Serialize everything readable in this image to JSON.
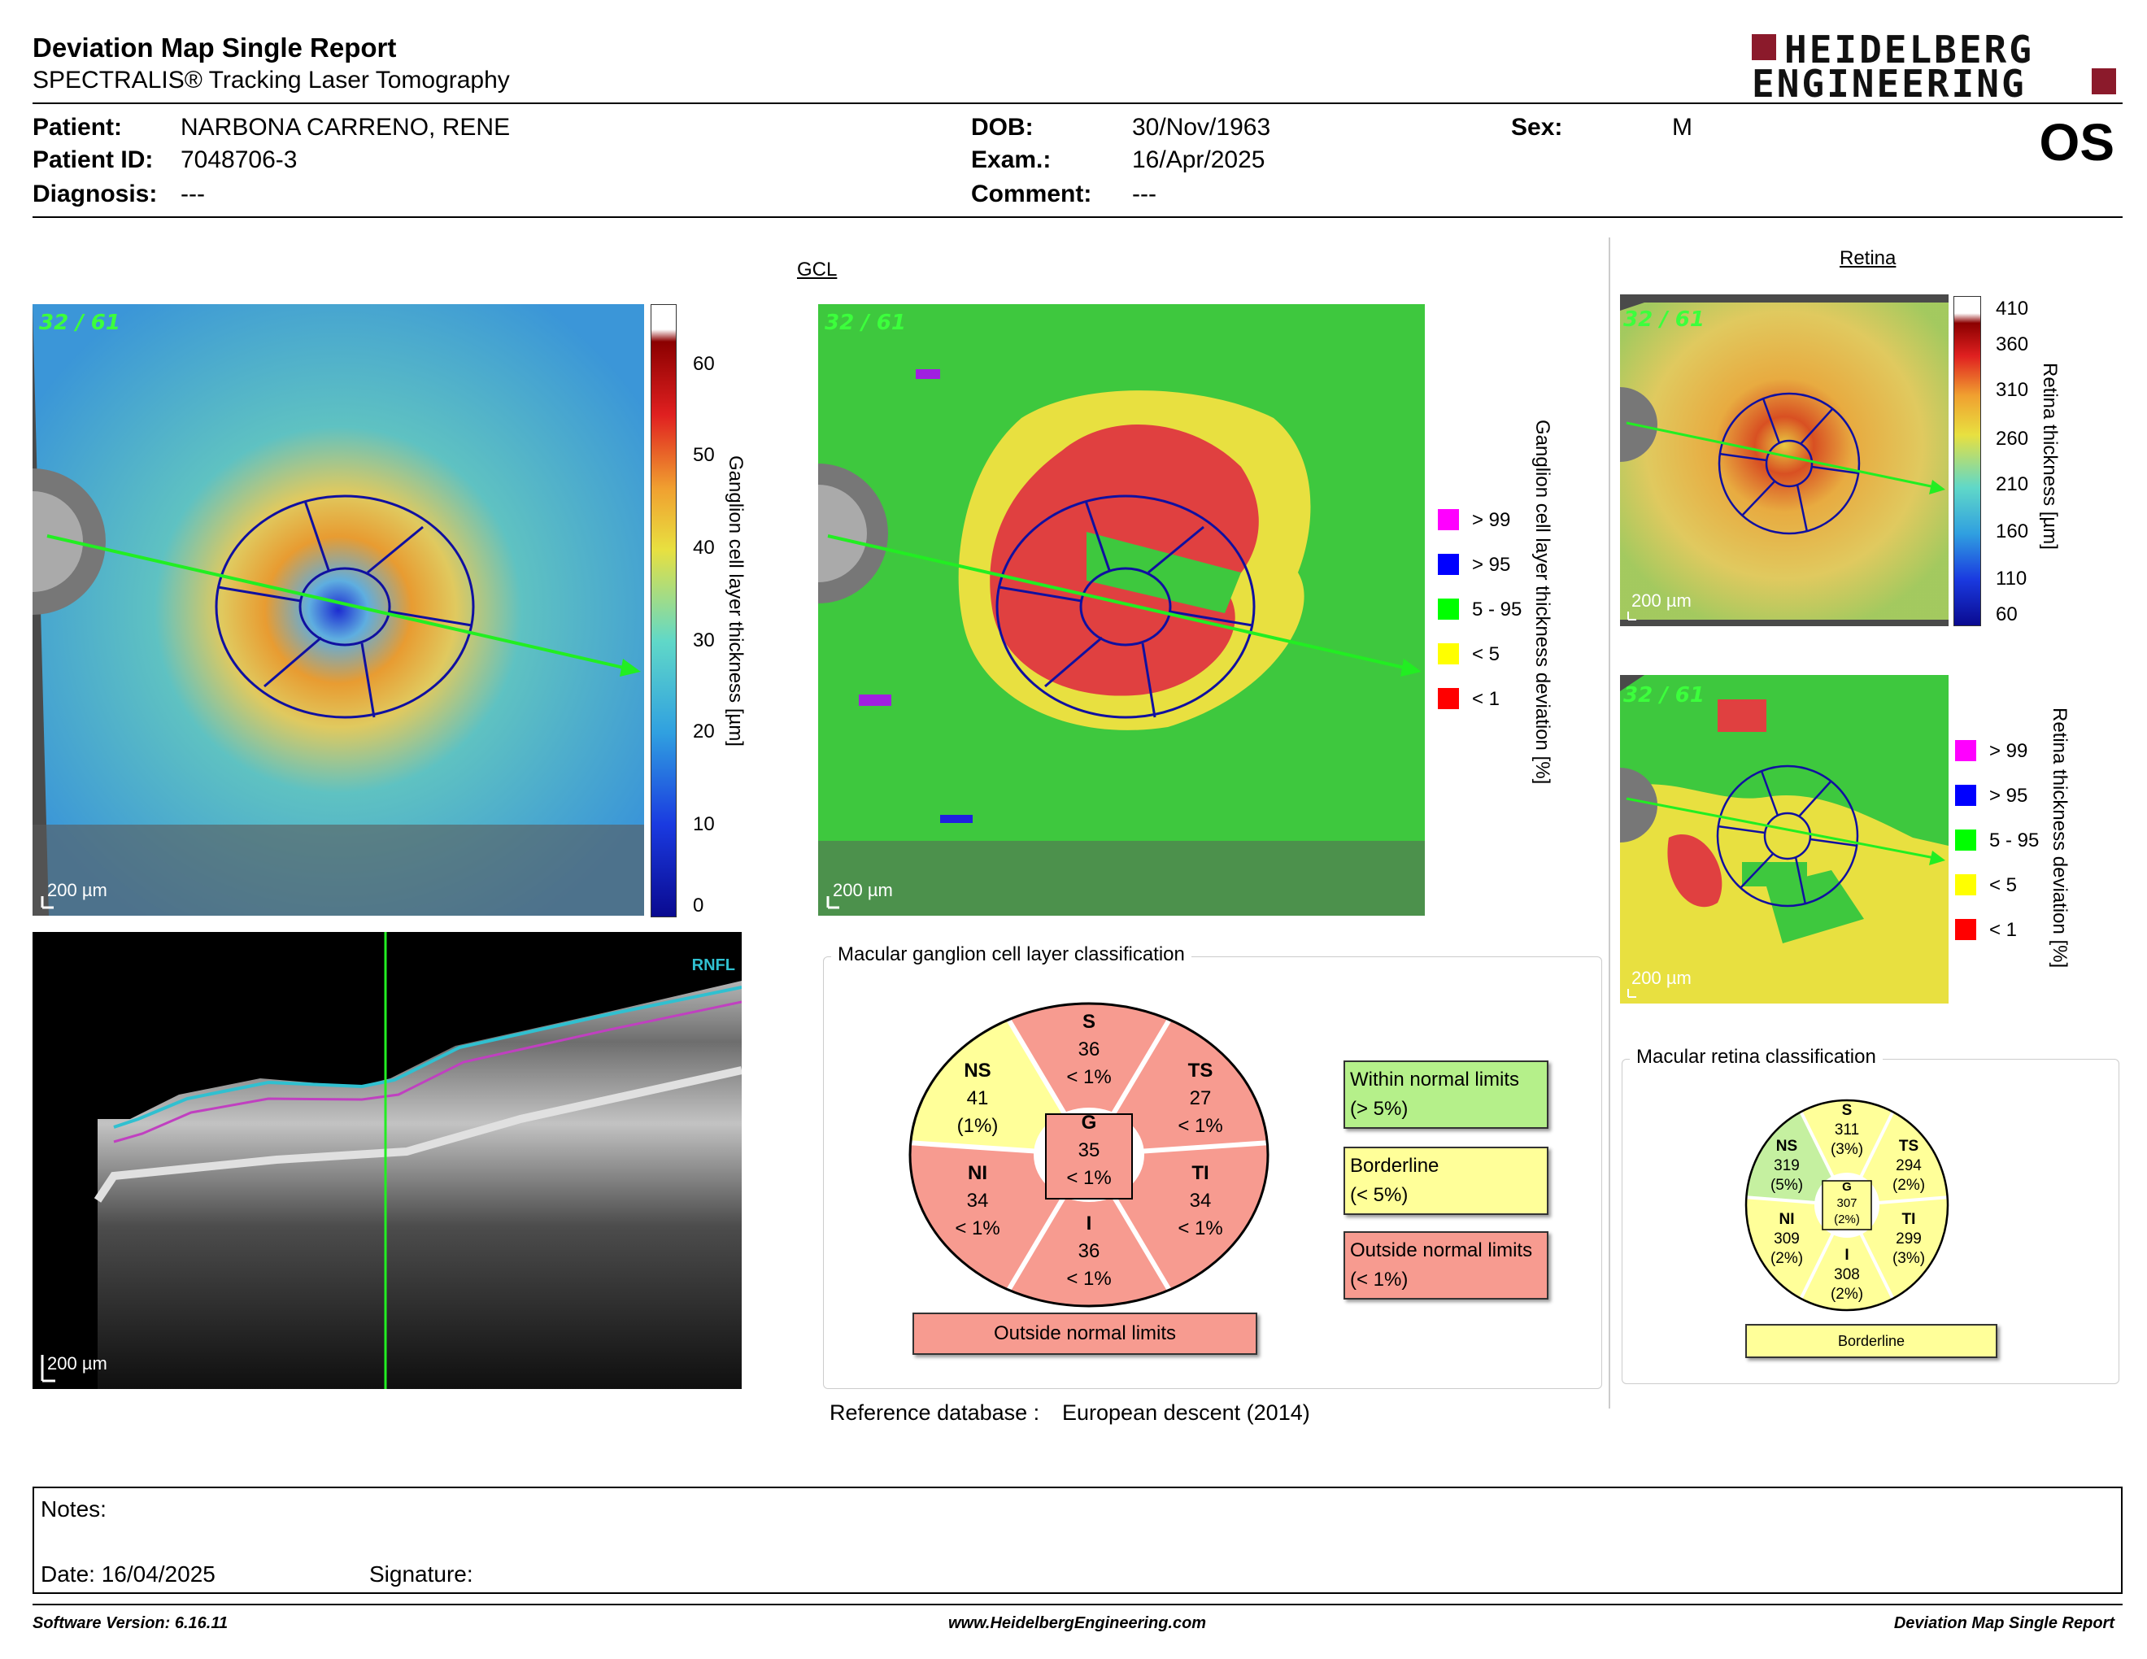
{
  "header": {
    "title": "Deviation Map Single Report",
    "subtitle": "SPECTRALIS® Tracking Laser Tomography",
    "logo_line1": "HEIDELBERG",
    "logo_line2": "ENGINEERING",
    "eye": "OS"
  },
  "patient": {
    "patient_label": "Patient:",
    "patient_value": "NARBONA CARRENO, RENE",
    "id_label": "Patient ID:",
    "id_value": "7048706-3",
    "diagnosis_label": "Diagnosis:",
    "diagnosis_value": "---",
    "dob_label": "DOB:",
    "dob_value": "30/Nov/1963",
    "exam_label": "Exam.:",
    "exam_value": "16/Apr/2025",
    "comment_label": "Comment:",
    "comment_value": "---",
    "sex_label": "Sex:",
    "sex_value": "M"
  },
  "gcl": {
    "section_title": "GCL",
    "frame_badge": "32 / 61",
    "scale": "200 µm",
    "thickness_axis_label": "Ganglion cell layer thickness [µm]",
    "thickness_ticks": [
      "60",
      "50",
      "40",
      "30",
      "20",
      "10",
      "0"
    ],
    "deviation_axis_label": "Ganglion cell layer thickness deviation [%]",
    "legend": [
      {
        "label": "> 99",
        "color": "#ff00ff"
      },
      {
        "label": "> 95",
        "color": "#0000ff"
      },
      {
        "label": "5 - 95",
        "color": "#00ff00"
      },
      {
        "label": "< 5",
        "color": "#ffff00"
      },
      {
        "label": "< 1",
        "color": "#ff0000"
      }
    ]
  },
  "bscan": {
    "scale": "200 µm",
    "layer_label": "RNFL"
  },
  "retina": {
    "section_title": "Retina",
    "frame_badge": "32 / 61",
    "scale": "200 µm",
    "thickness_axis_label": "Retina thickness [µm]",
    "thickness_ticks": [
      "410",
      "360",
      "310",
      "260",
      "210",
      "160",
      "110",
      "60"
    ],
    "deviation_axis_label": "Retina thickness deviation [%]",
    "legend": [
      {
        "label": "> 99",
        "color": "#ff00ff"
      },
      {
        "label": "> 95",
        "color": "#0000ff"
      },
      {
        "label": "5 - 95",
        "color": "#00ff00"
      },
      {
        "label": "< 5",
        "color": "#ffff00"
      },
      {
        "label": "< 1",
        "color": "#ff0000"
      }
    ]
  },
  "gcl_classification": {
    "title": "Macular ganglion cell layer classification",
    "sectors": {
      "S": {
        "name": "S",
        "value": "36",
        "pct": "< 1%",
        "color": "#f79b90"
      },
      "TS": {
        "name": "TS",
        "value": "27",
        "pct": "< 1%",
        "color": "#f79b90"
      },
      "TI": {
        "name": "TI",
        "value": "34",
        "pct": "< 1%",
        "color": "#f79b90"
      },
      "I": {
        "name": "I",
        "value": "36",
        "pct": "< 1%",
        "color": "#f79b90"
      },
      "NI": {
        "name": "NI",
        "value": "34",
        "pct": "< 1%",
        "color": "#f79b90"
      },
      "NS": {
        "name": "NS",
        "value": "41",
        "pct": "(1%)",
        "color": "#ffff99"
      },
      "G": {
        "name": "G",
        "value": "35",
        "pct": "< 1%",
        "color": "#f79b90"
      }
    },
    "result": "Outside normal limits",
    "key": [
      {
        "line1": "Within normal limits",
        "line2": "(> 5%)",
        "color": "#b5f08a"
      },
      {
        "line1": "Borderline",
        "line2": "(< 5%)",
        "color": "#ffff99"
      },
      {
        "line1": "Outside normal limits",
        "line2": "(< 1%)",
        "color": "#f79b90"
      }
    ],
    "reference_label": "Reference database :",
    "reference_value": "European descent (2014)"
  },
  "retina_classification": {
    "title": "Macular retina classification",
    "sectors": {
      "S": {
        "name": "S",
        "value": "311",
        "pct": "(3%)",
        "color": "#ffff99"
      },
      "TS": {
        "name": "TS",
        "value": "294",
        "pct": "(2%)",
        "color": "#ffff99"
      },
      "TI": {
        "name": "TI",
        "value": "299",
        "pct": "(3%)",
        "color": "#ffff99"
      },
      "I": {
        "name": "I",
        "value": "308",
        "pct": "(2%)",
        "color": "#ffff99"
      },
      "NI": {
        "name": "NI",
        "value": "309",
        "pct": "(2%)",
        "color": "#ffff99"
      },
      "NS": {
        "name": "NS",
        "value": "319",
        "pct": "(5%)",
        "color": "#c5f0a0"
      },
      "G": {
        "name": "G",
        "value": "307",
        "pct": "(2%)",
        "color": "#ffff99"
      }
    },
    "result": "Borderline"
  },
  "notes": {
    "notes_label": "Notes:",
    "date_label": "Date: 16/04/2025",
    "signature_label": "Signature:"
  },
  "footer": {
    "software": "Software Version: 6.16.11",
    "website": "www.HeidelbergEngineering.com",
    "report_name": "Deviation Map Single Report"
  }
}
